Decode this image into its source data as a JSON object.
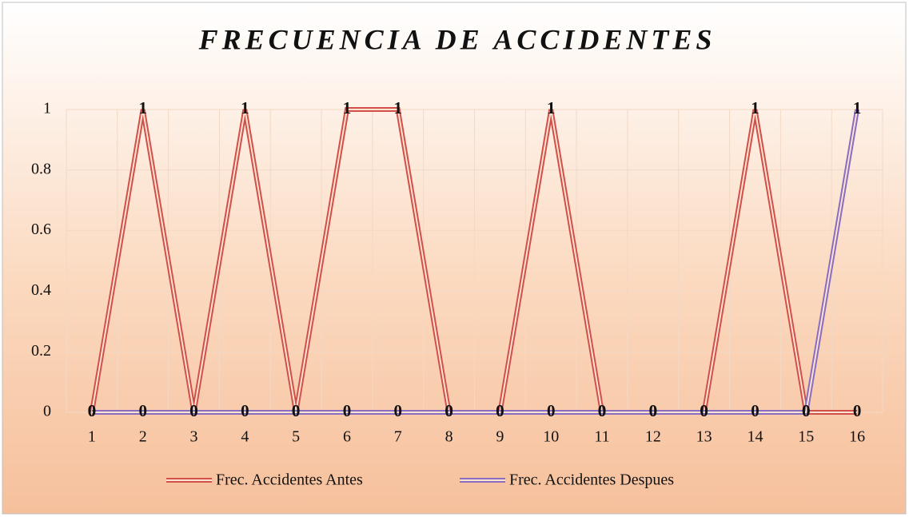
{
  "chart_data": {
    "type": "line",
    "title": "FRECUENCIA DE ACCIDENTES",
    "categories": [
      1,
      2,
      3,
      4,
      5,
      6,
      7,
      8,
      9,
      10,
      11,
      12,
      13,
      14,
      15,
      16
    ],
    "series": [
      {
        "name": "Frec. Accidentes Antes",
        "color": "#d2504a",
        "values": [
          0,
          1,
          0,
          1,
          0,
          1,
          1,
          0,
          0,
          1,
          0,
          0,
          0,
          1,
          0,
          0
        ]
      },
      {
        "name": "Frec. Accidentes Despues",
        "color": "#8a6cc0",
        "values": [
          0,
          0,
          0,
          0,
          0,
          0,
          0,
          0,
          0,
          0,
          0,
          0,
          0,
          0,
          0,
          1
        ]
      }
    ],
    "ylim": [
      0,
      1
    ],
    "yticks": [
      0,
      0.2,
      0.4,
      0.6,
      0.8,
      1
    ],
    "grid": true,
    "legend": "bottom"
  }
}
